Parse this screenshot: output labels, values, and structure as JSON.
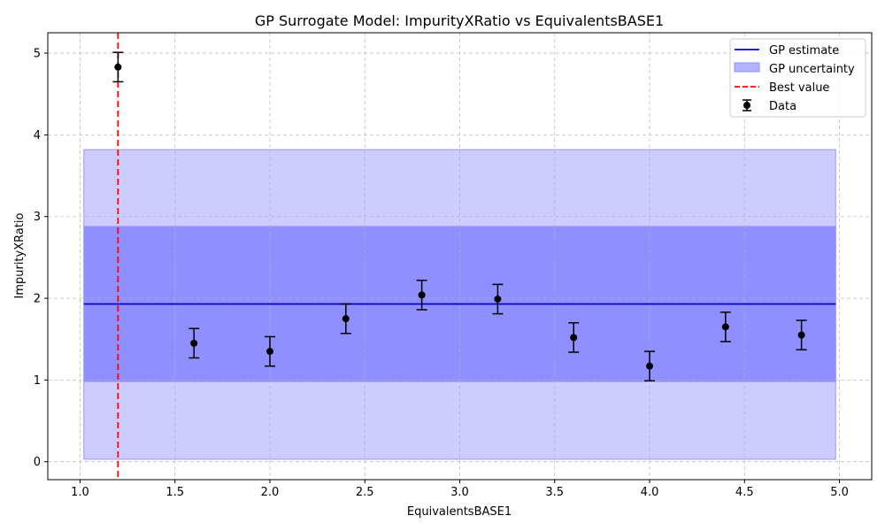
{
  "chart_data": {
    "type": "line",
    "title": "GP Surrogate Model: ImpurityXRatio vs EquivalentsBASE1",
    "xlabel": "EquivalentsBASE1",
    "ylabel": "ImpurityXRatio",
    "xlim": [
      0.83,
      5.17
    ],
    "ylim": [
      -0.22,
      5.25
    ],
    "xticks": [
      "1.0",
      "1.5",
      "2.0",
      "2.5",
      "3.0",
      "3.5",
      "4.0",
      "4.5",
      "5.0"
    ],
    "yticks": [
      "0",
      "1",
      "2",
      "3",
      "4",
      "5"
    ],
    "grid": true,
    "legend_position": "top-right",
    "legend": [
      "GP estimate",
      "GP uncertainty",
      "Best value",
      "Data"
    ],
    "gp_estimate": {
      "x": [
        1.02,
        4.98
      ],
      "y": 1.93,
      "color": "#0000cc"
    },
    "gp_uncertainty_bands": [
      {
        "x": [
          1.02,
          4.98
        ],
        "lower": 0.03,
        "upper": 3.82,
        "color": "#ccccff"
      },
      {
        "x": [
          1.02,
          4.98
        ],
        "lower": 0.98,
        "upper": 2.88,
        "color": "#8f8fff"
      }
    ],
    "best_value": {
      "x": 1.2,
      "color": "#ff0000"
    },
    "data_points": {
      "x": [
        1.2,
        1.6,
        2.0,
        2.4,
        2.8,
        3.2,
        3.6,
        4.0,
        4.4,
        4.8
      ],
      "y": [
        4.83,
        1.45,
        1.35,
        1.75,
        2.04,
        1.99,
        1.52,
        1.17,
        1.65,
        1.55
      ],
      "error": [
        0.18,
        0.18,
        0.18,
        0.18,
        0.18,
        0.18,
        0.18,
        0.18,
        0.18,
        0.18
      ],
      "color": "#000000"
    }
  }
}
